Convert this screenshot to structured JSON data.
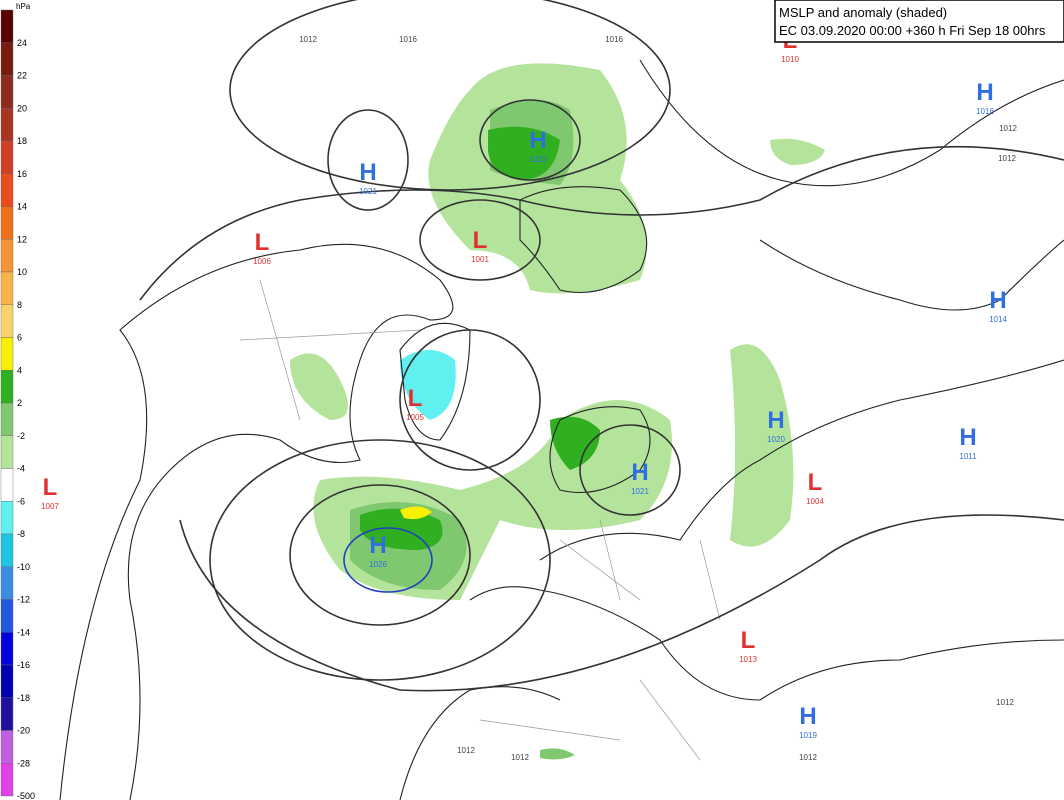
{
  "header": {
    "title": "MSLP and anomaly (shaded)",
    "subtitle": "EC 03.09.2020 00:00 +360 h Fri Sep 18 00hrs"
  },
  "legend": {
    "unit": "hPa",
    "labels": [
      "24",
      "22",
      "20",
      "18",
      "16",
      "14",
      "12",
      "10",
      "8",
      "6",
      "4",
      "2",
      "-2",
      "-4",
      "-6",
      "-8",
      "-10",
      "-12",
      "-14",
      "-16",
      "-18",
      "-20",
      "-28",
      "-500"
    ],
    "colors": [
      "#5a0000",
      "#781c10",
      "#8c2c1c",
      "#a83424",
      "#d04028",
      "#ea4c1c",
      "#f07018",
      "#f49434",
      "#f8b448",
      "#f8d468",
      "#f8f000",
      "#30b020",
      "#80c870",
      "#b4e49c",
      "#ffffff",
      "#60f0f0",
      "#20c4e4",
      "#3c8ce0",
      "#2058e0",
      "#0000e0",
      "#0000b0",
      "#2010a0",
      "#c060e0",
      "#e040e8"
    ]
  },
  "centers": [
    {
      "letter": "L",
      "value": "1010"
    },
    {
      "letter": "H",
      "value": "1016"
    },
    {
      "letter": "H",
      "value": "1021"
    },
    {
      "letter": "H",
      "value": "1022"
    },
    {
      "letter": "L",
      "value": "1006"
    },
    {
      "letter": "L",
      "value": "1001"
    },
    {
      "letter": "H",
      "value": "1014"
    },
    {
      "letter": "L",
      "value": "1005"
    },
    {
      "letter": "H",
      "value": "1020"
    },
    {
      "letter": "H",
      "value": "1011"
    },
    {
      "letter": "H",
      "value": "1021"
    },
    {
      "letter": "L",
      "value": "1007"
    },
    {
      "letter": "L",
      "value": "1004"
    },
    {
      "letter": "H",
      "value": "1026"
    },
    {
      "letter": "L",
      "value": "1013"
    },
    {
      "letter": "H",
      "value": "1019"
    }
  ],
  "contour_labels": [
    "1012",
    "1016",
    "1016",
    "1012",
    "1012",
    "1012",
    "1012",
    "1012",
    "1012"
  ]
}
